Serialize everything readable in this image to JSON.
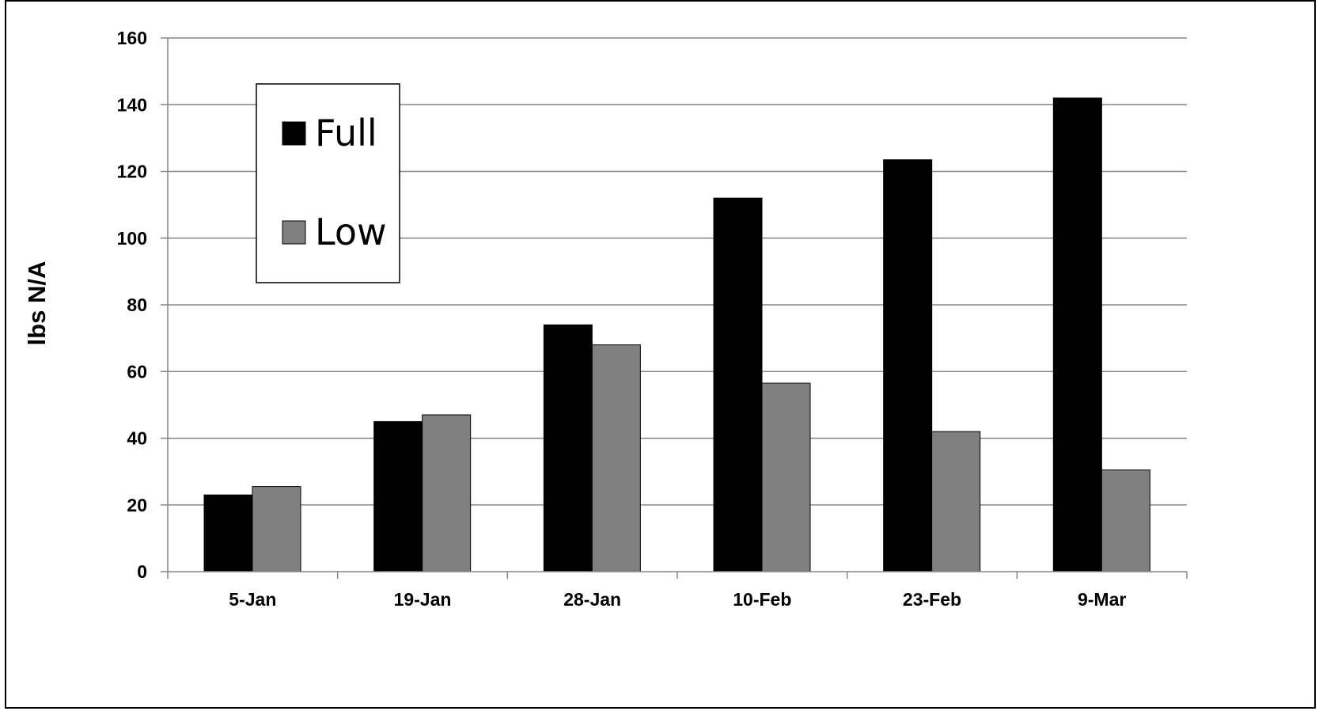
{
  "chart_data": {
    "type": "bar",
    "title": "",
    "xlabel": "",
    "ylabel": "lbs N/A",
    "categories": [
      "5-Jan",
      "19-Jan",
      "28-Jan",
      "10-Feb",
      "23-Feb",
      "9-Mar"
    ],
    "series": [
      {
        "name": "Full",
        "color": "#000000",
        "values": [
          23,
          45,
          74,
          112,
          123.5,
          142
        ]
      },
      {
        "name": "Low",
        "color": "#808080",
        "values": [
          25.5,
          47,
          68,
          56.5,
          42,
          30.5
        ]
      }
    ],
    "ylim": [
      0,
      160
    ],
    "yticks": [
      "0",
      "20",
      "40",
      "60",
      "80",
      "100",
      "120",
      "140",
      "160"
    ],
    "grid": "horizontal",
    "legend_position": "top-left"
  }
}
